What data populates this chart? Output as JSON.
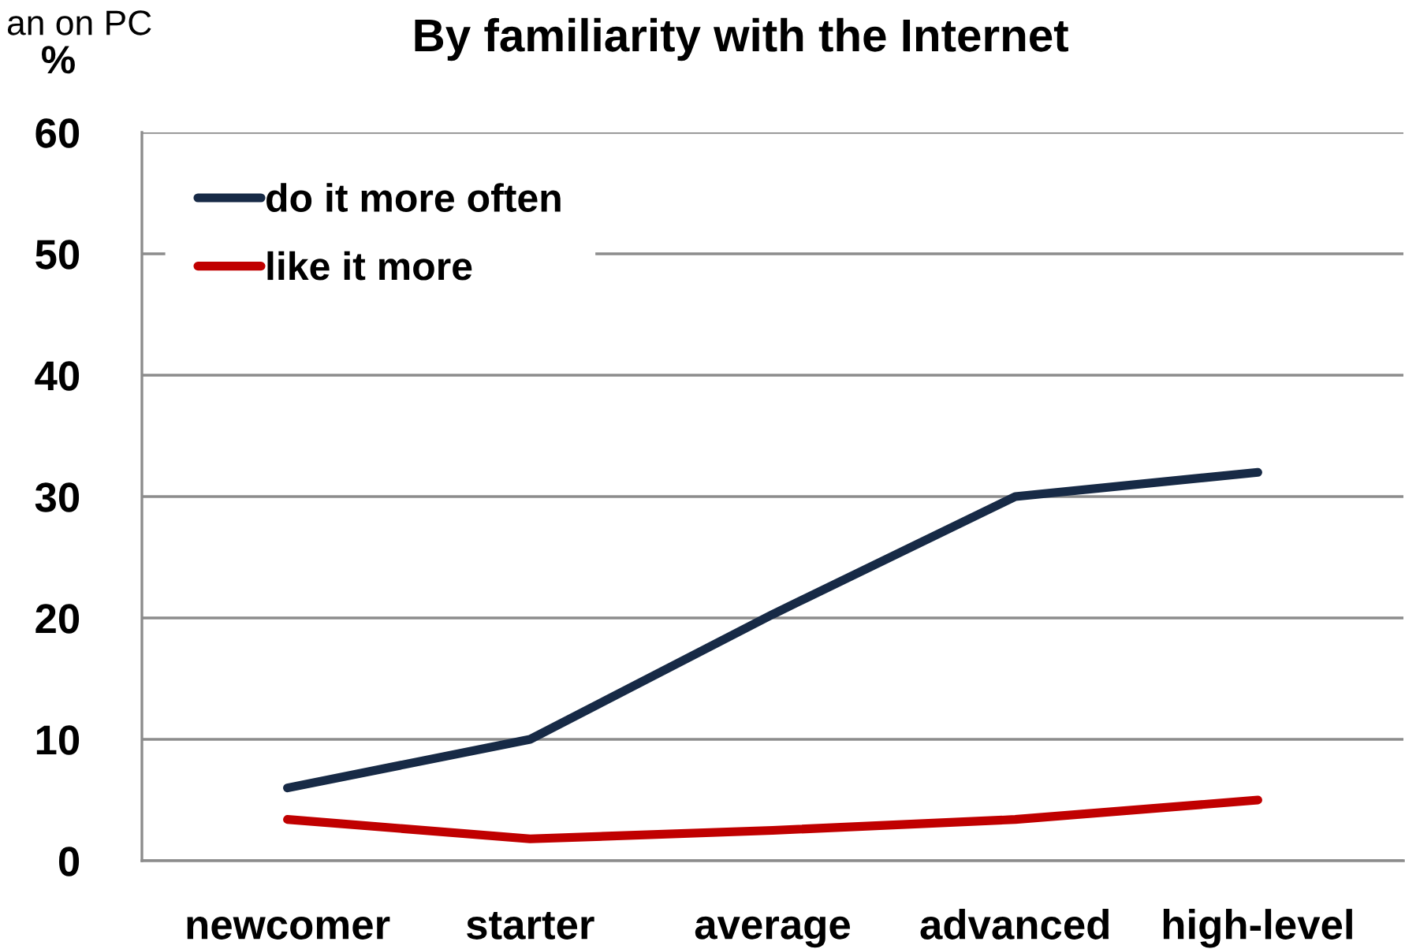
{
  "chart_data": {
    "type": "line",
    "title": "By familiarity with the Internet",
    "ylabel": "%",
    "annotations": [
      "an on PC"
    ],
    "categories": [
      "newcomer",
      "starter",
      "average",
      "advanced",
      "high-level"
    ],
    "series": [
      {
        "name": "do it more often",
        "color": "#172a46",
        "values": [
          6,
          10,
          20.3,
          30,
          32
        ]
      },
      {
        "name": "like it more",
        "color": "#c00000",
        "values": [
          3.4,
          1.8,
          2.5,
          3.4,
          5
        ]
      }
    ],
    "ylim": [
      0,
      60
    ],
    "yticks": [
      0,
      10,
      20,
      30,
      40,
      50,
      60
    ],
    "grid": "y",
    "legend": "top left",
    "marker": "none",
    "line_style": "solid"
  }
}
